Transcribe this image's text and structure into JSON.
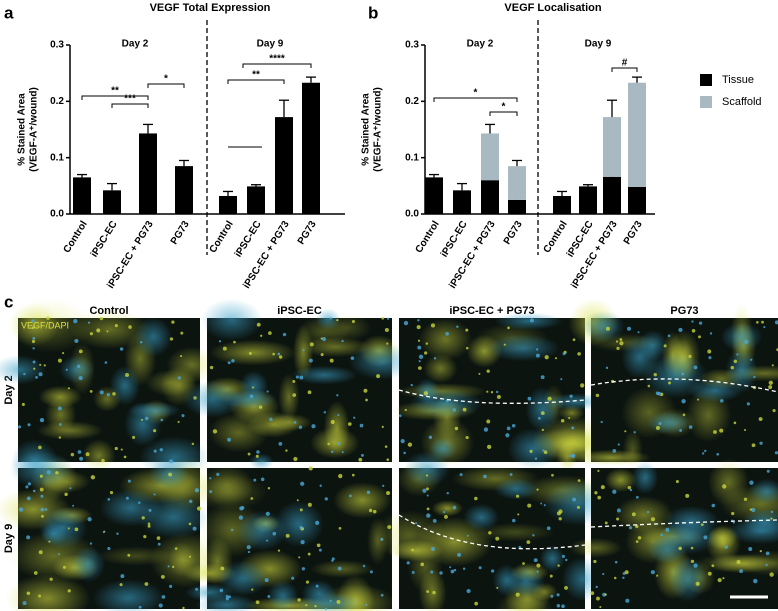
{
  "panel_labels": [
    "a",
    "b",
    "c"
  ],
  "chart_data": [
    {
      "type": "bar",
      "title": "VEGF Total Expression",
      "ylabel": [
        "% Stained Area",
        "(VEGF-A⁺/wound)"
      ],
      "groups": [
        "Day 2",
        "Day 9"
      ],
      "categories": [
        "Control",
        "iPSC-EC",
        "iPSC-EC + PG73",
        "PG73",
        "Control",
        "iPSC-EC",
        "iPSC-EC + PG73",
        "PG73"
      ],
      "values": [
        0.065,
        0.042,
        0.143,
        0.085,
        0.032,
        0.049,
        0.172,
        0.233
      ],
      "errors": [
        0.005,
        0.012,
        0.016,
        0.01,
        0.008,
        0.003,
        0.03,
        0.01
      ],
      "color": "#000000",
      "ylim": [
        0,
        0.3
      ],
      "yticks": [
        {
          "value": 0,
          "label": "0.0"
        },
        0.1,
        0.2,
        0.3
      ],
      "annotations": [
        "**",
        "***",
        "*",
        "**",
        "****"
      ]
    },
    {
      "type": "stacked_bar",
      "title": "VEGF Localisation",
      "ylabel": [
        "% Stained Area",
        "(VEGF-A⁺/wound)"
      ],
      "groups": [
        "Day 2",
        "Day 9"
      ],
      "categories": [
        "Control",
        "iPSC-EC",
        "iPSC-EC + PG73",
        "PG73",
        "Control",
        "iPSC-EC",
        "iPSC-EC + PG73",
        "PG73"
      ],
      "series": [
        {
          "name": "Tissue",
          "color": "#000000",
          "values": [
            0.065,
            0.042,
            0.06,
            0.025,
            0.032,
            0.049,
            0.066,
            0.048
          ],
          "errors": [
            0.005,
            0.012,
            0.01,
            0.004,
            0.008,
            0.003,
            0.008,
            0.01
          ]
        },
        {
          "name": "Scaffold",
          "color": "#a9b9c2",
          "values": [
            0,
            0,
            0.083,
            0.06,
            0,
            0,
            0.106,
            0.185
          ],
          "errors": [
            0,
            0,
            0.016,
            0.01,
            0,
            0,
            0.03,
            0.01
          ]
        }
      ],
      "ylim": [
        0,
        0.3
      ],
      "yticks": [
        {
          "value": 0,
          "label": "0.0"
        },
        0.1,
        0.2,
        0.3
      ],
      "legend": "right",
      "annotations": [
        "*",
        "*",
        "#"
      ]
    }
  ],
  "micrographs": {
    "stain_label": "VEGF/DAPI",
    "columns": [
      "Control",
      "iPSC-EC",
      "iPSC-EC + PG73",
      "PG73"
    ],
    "rows": [
      "Day 2",
      "Day 9"
    ]
  }
}
